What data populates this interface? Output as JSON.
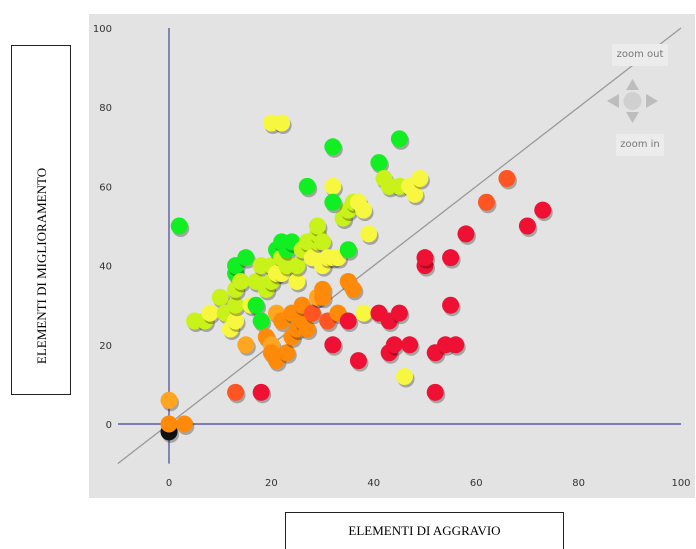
{
  "chart_data": {
    "type": "scatter",
    "title": "",
    "xlabel": "ELEMENTI DI AGGRAVIO",
    "ylabel": "ELEMENTI DI MIGLIORAMENTO",
    "xlim": [
      -10,
      100
    ],
    "ylim": [
      -10,
      100
    ],
    "xticks": [
      0,
      20,
      40,
      60,
      80,
      100
    ],
    "yticks": [
      0,
      20,
      40,
      60,
      80,
      100
    ],
    "grid": false,
    "legend": "none",
    "reference_line": {
      "type": "diagonal",
      "from": [
        -10,
        -10
      ],
      "to": [
        100,
        100
      ],
      "color": "#999999"
    },
    "axis_color": "#5b5ba8",
    "colors": {
      "red": "#ee1133",
      "orange_red": "#ff5522",
      "orange": "#ff8a0a",
      "amber": "#ffa520",
      "yellow": "#f7f740",
      "yellow_green": "#c8f21a",
      "green": "#11ee22",
      "black": "#111111"
    },
    "points": [
      {
        "x": 0,
        "y": -2,
        "color": "black"
      },
      {
        "x": 0,
        "y": 6,
        "color": "amber"
      },
      {
        "x": 0,
        "y": 0,
        "color": "orange"
      },
      {
        "x": 3,
        "y": 0,
        "color": "orange"
      },
      {
        "x": 2,
        "y": 50,
        "color": "green"
      },
      {
        "x": 5,
        "y": 26,
        "color": "yellow_green"
      },
      {
        "x": 7,
        "y": 26,
        "color": "yellow_green"
      },
      {
        "x": 8,
        "y": 28,
        "color": "yellow"
      },
      {
        "x": 10,
        "y": 32,
        "color": "yellow_green"
      },
      {
        "x": 11,
        "y": 28,
        "color": "yellow_green"
      },
      {
        "x": 12,
        "y": 24,
        "color": "yellow"
      },
      {
        "x": 13,
        "y": 26,
        "color": "yellow"
      },
      {
        "x": 13,
        "y": 30,
        "color": "yellow_green"
      },
      {
        "x": 13,
        "y": 34,
        "color": "yellow_green"
      },
      {
        "x": 13,
        "y": 38,
        "color": "green"
      },
      {
        "x": 13,
        "y": 40,
        "color": "green"
      },
      {
        "x": 14,
        "y": 36,
        "color": "yellow_green"
      },
      {
        "x": 15,
        "y": 42,
        "color": "green"
      },
      {
        "x": 15,
        "y": 20,
        "color": "amber"
      },
      {
        "x": 16,
        "y": 30,
        "color": "yellow"
      },
      {
        "x": 17,
        "y": 30,
        "color": "green"
      },
      {
        "x": 17,
        "y": 36,
        "color": "yellow_green"
      },
      {
        "x": 18,
        "y": 26,
        "color": "green"
      },
      {
        "x": 18,
        "y": 40,
        "color": "yellow_green"
      },
      {
        "x": 19,
        "y": 34,
        "color": "yellow_green"
      },
      {
        "x": 20,
        "y": 36,
        "color": "yellow_green"
      },
      {
        "x": 20,
        "y": 40,
        "color": "yellow_green"
      },
      {
        "x": 21,
        "y": 38,
        "color": "yellow"
      },
      {
        "x": 21,
        "y": 44,
        "color": "green"
      },
      {
        "x": 22,
        "y": 42,
        "color": "yellow_green"
      },
      {
        "x": 22,
        "y": 46,
        "color": "green"
      },
      {
        "x": 22,
        "y": 38,
        "color": "yellow"
      },
      {
        "x": 23,
        "y": 40,
        "color": "yellow_green"
      },
      {
        "x": 23,
        "y": 44,
        "color": "green"
      },
      {
        "x": 24,
        "y": 46,
        "color": "green"
      },
      {
        "x": 25,
        "y": 36,
        "color": "yellow"
      },
      {
        "x": 25,
        "y": 40,
        "color": "yellow_green"
      },
      {
        "x": 26,
        "y": 44,
        "color": "yellow_green"
      },
      {
        "x": 27,
        "y": 46,
        "color": "yellow_green"
      },
      {
        "x": 28,
        "y": 42,
        "color": "yellow"
      },
      {
        "x": 29,
        "y": 46,
        "color": "yellow_green"
      },
      {
        "x": 29,
        "y": 48,
        "color": "yellow_green"
      },
      {
        "x": 29,
        "y": 50,
        "color": "yellow_green"
      },
      {
        "x": 30,
        "y": 40,
        "color": "yellow"
      },
      {
        "x": 30,
        "y": 46,
        "color": "yellow_green"
      },
      {
        "x": 31,
        "y": 42,
        "color": "yellow"
      },
      {
        "x": 32,
        "y": 42,
        "color": "yellow"
      },
      {
        "x": 33,
        "y": 42,
        "color": "yellow"
      },
      {
        "x": 34,
        "y": 52,
        "color": "yellow_green"
      },
      {
        "x": 35,
        "y": 54,
        "color": "yellow_green"
      },
      {
        "x": 35,
        "y": 44,
        "color": "green"
      },
      {
        "x": 36,
        "y": 56,
        "color": "yellow_green"
      },
      {
        "x": 37,
        "y": 56,
        "color": "yellow"
      },
      {
        "x": 38,
        "y": 54,
        "color": "yellow"
      },
      {
        "x": 39,
        "y": 48,
        "color": "yellow"
      },
      {
        "x": 20,
        "y": 76,
        "color": "yellow"
      },
      {
        "x": 22,
        "y": 76,
        "color": "yellow"
      },
      {
        "x": 32,
        "y": 70,
        "color": "green"
      },
      {
        "x": 45,
        "y": 72,
        "color": "green"
      },
      {
        "x": 27,
        "y": 60,
        "color": "green"
      },
      {
        "x": 32,
        "y": 60,
        "color": "yellow"
      },
      {
        "x": 32,
        "y": 56,
        "color": "green"
      },
      {
        "x": 41,
        "y": 66,
        "color": "green"
      },
      {
        "x": 42,
        "y": 62,
        "color": "yellow_green"
      },
      {
        "x": 43,
        "y": 60,
        "color": "yellow_green"
      },
      {
        "x": 45,
        "y": 60,
        "color": "yellow_green"
      },
      {
        "x": 47,
        "y": 60,
        "color": "yellow"
      },
      {
        "x": 48,
        "y": 58,
        "color": "yellow"
      },
      {
        "x": 49,
        "y": 62,
        "color": "yellow"
      },
      {
        "x": 13,
        "y": 8,
        "color": "orange_red"
      },
      {
        "x": 18,
        "y": 8,
        "color": "red"
      },
      {
        "x": 19,
        "y": 22,
        "color": "orange"
      },
      {
        "x": 20,
        "y": 20,
        "color": "amber"
      },
      {
        "x": 20,
        "y": 18,
        "color": "orange"
      },
      {
        "x": 21,
        "y": 16,
        "color": "orange"
      },
      {
        "x": 21,
        "y": 28,
        "color": "amber"
      },
      {
        "x": 22,
        "y": 26,
        "color": "orange"
      },
      {
        "x": 23,
        "y": 18,
        "color": "orange"
      },
      {
        "x": 24,
        "y": 22,
        "color": "orange"
      },
      {
        "x": 24,
        "y": 28,
        "color": "orange"
      },
      {
        "x": 25,
        "y": 24,
        "color": "orange"
      },
      {
        "x": 26,
        "y": 26,
        "color": "orange"
      },
      {
        "x": 26,
        "y": 30,
        "color": "orange"
      },
      {
        "x": 27,
        "y": 24,
        "color": "orange"
      },
      {
        "x": 28,
        "y": 28,
        "color": "orange_red"
      },
      {
        "x": 29,
        "y": 32,
        "color": "amber"
      },
      {
        "x": 30,
        "y": 34,
        "color": "orange"
      },
      {
        "x": 30,
        "y": 32,
        "color": "orange"
      },
      {
        "x": 31,
        "y": 26,
        "color": "orange_red"
      },
      {
        "x": 32,
        "y": 20,
        "color": "red"
      },
      {
        "x": 33,
        "y": 28,
        "color": "orange"
      },
      {
        "x": 35,
        "y": 36,
        "color": "orange"
      },
      {
        "x": 35,
        "y": 26,
        "color": "red"
      },
      {
        "x": 36,
        "y": 34,
        "color": "orange"
      },
      {
        "x": 37,
        "y": 16,
        "color": "red"
      },
      {
        "x": 38,
        "y": 28,
        "color": "yellow"
      },
      {
        "x": 41,
        "y": 28,
        "color": "red"
      },
      {
        "x": 43,
        "y": 18,
        "color": "red"
      },
      {
        "x": 43,
        "y": 26,
        "color": "red"
      },
      {
        "x": 44,
        "y": 20,
        "color": "red"
      },
      {
        "x": 45,
        "y": 28,
        "color": "red"
      },
      {
        "x": 46,
        "y": 12,
        "color": "yellow"
      },
      {
        "x": 47,
        "y": 20,
        "color": "red"
      },
      {
        "x": 50,
        "y": 40,
        "color": "red"
      },
      {
        "x": 50,
        "y": 42,
        "color": "red"
      },
      {
        "x": 52,
        "y": 18,
        "color": "red"
      },
      {
        "x": 52,
        "y": 8,
        "color": "red"
      },
      {
        "x": 54,
        "y": 20,
        "color": "red"
      },
      {
        "x": 55,
        "y": 30,
        "color": "red"
      },
      {
        "x": 55,
        "y": 42,
        "color": "red"
      },
      {
        "x": 56,
        "y": 20,
        "color": "red"
      },
      {
        "x": 58,
        "y": 48,
        "color": "red"
      },
      {
        "x": 62,
        "y": 56,
        "color": "orange_red"
      },
      {
        "x": 66,
        "y": 62,
        "color": "orange_red"
      },
      {
        "x": 70,
        "y": 50,
        "color": "red"
      },
      {
        "x": 73,
        "y": 54,
        "color": "red"
      }
    ]
  },
  "controls": {
    "zoom_out_label": "zoom out",
    "zoom_in_label": "zoom in",
    "pan_icon": "four-way-arrow"
  }
}
